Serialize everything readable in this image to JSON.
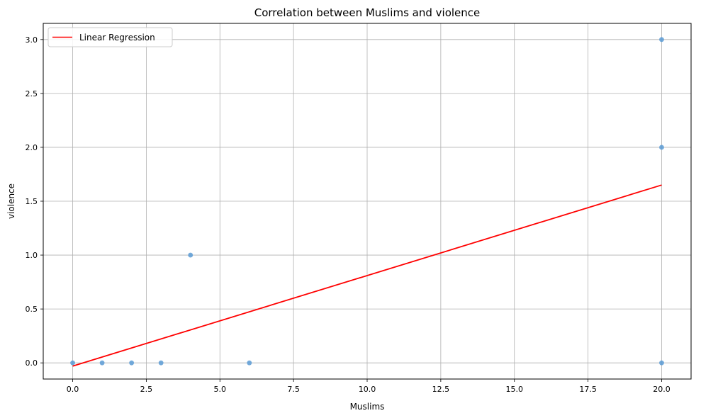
{
  "chart_data": {
    "type": "scatter",
    "title": "Correlation between Muslims and violence",
    "xlabel": "Muslims",
    "ylabel": "violence",
    "xlim": [
      -1.0,
      21.0
    ],
    "ylim": [
      -0.15,
      3.15
    ],
    "xticks": [
      0.0,
      2.5,
      5.0,
      7.5,
      10.0,
      12.5,
      15.0,
      17.5,
      20.0
    ],
    "xtick_labels": [
      "0.0",
      "2.5",
      "5.0",
      "7.5",
      "10.0",
      "12.5",
      "15.0",
      "17.5",
      "20.0"
    ],
    "yticks": [
      0.0,
      0.5,
      1.0,
      1.5,
      2.0,
      2.5,
      3.0
    ],
    "ytick_labels": [
      "0.0",
      "0.5",
      "1.0",
      "1.5",
      "2.0",
      "2.5",
      "3.0"
    ],
    "grid": true,
    "legend_position": "upper-left",
    "points": [
      {
        "x": 0,
        "y": 0
      },
      {
        "x": 1,
        "y": 0
      },
      {
        "x": 2,
        "y": 0
      },
      {
        "x": 3,
        "y": 0
      },
      {
        "x": 4,
        "y": 1
      },
      {
        "x": 6,
        "y": 0
      },
      {
        "x": 20,
        "y": 0
      },
      {
        "x": 20,
        "y": 2
      },
      {
        "x": 20,
        "y": 3
      }
    ],
    "point_color": "#5b9bd5",
    "regression": {
      "name": "Linear Regression",
      "x": [
        0,
        20
      ],
      "y": [
        -0.03,
        1.65
      ],
      "color": "#ff0000"
    }
  }
}
